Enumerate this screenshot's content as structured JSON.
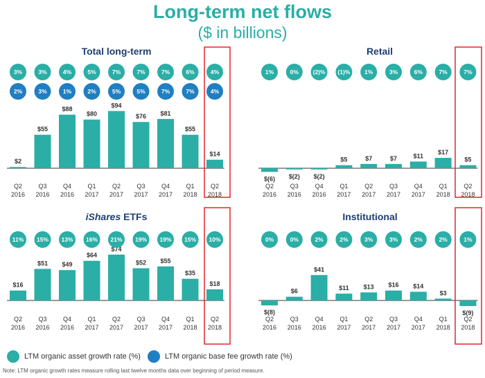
{
  "title": "Long-term net flows",
  "subtitle": "($ in billions)",
  "colors": {
    "teal": "#2aaea6",
    "blue": "#1f7fc1",
    "highlight": "#e0262b",
    "axis": "#333333"
  },
  "legend": {
    "asset_label": "LTM organic asset growth rate (%)",
    "base_fee_label": "LTM organic base fee growth rate (%)"
  },
  "footnote": "Note: LTM organic growth rates measure rolling last twelve months data over beginning of period measure.",
  "chart_data": [
    {
      "type": "bar",
      "title": "Total long-term",
      "categories": [
        "Q2 2016",
        "Q3 2016",
        "Q4 2016",
        "Q1 2017",
        "Q2 2017",
        "Q3 2017",
        "Q4 2017",
        "Q1 2018",
        "Q2 2018"
      ],
      "values": [
        2,
        55,
        88,
        80,
        94,
        76,
        81,
        55,
        14
      ],
      "value_labels": [
        "$2",
        "$55",
        "$88",
        "$80",
        "$94",
        "$76",
        "$81",
        "$55",
        "$14"
      ],
      "asset_growth": [
        "3%",
        "3%",
        "4%",
        "5%",
        "7%",
        "7%",
        "7%",
        "6%",
        "4%"
      ],
      "base_fee_growth": [
        "2%",
        "3%",
        "1%",
        "2%",
        "5%",
        "5%",
        "7%",
        "7%",
        "4%"
      ],
      "highlight_category": "Q2 2018"
    },
    {
      "type": "bar",
      "title": "Retail",
      "categories": [
        "Q2 2016",
        "Q3 2016",
        "Q4 2016",
        "Q1 2017",
        "Q2 2017",
        "Q3 2017",
        "Q4 2017",
        "Q1 2018",
        "Q2 2018"
      ],
      "values": [
        -6,
        -2,
        -2,
        5,
        7,
        7,
        11,
        17,
        5
      ],
      "value_labels": [
        "$(6)",
        "$(2)",
        "$(2)",
        "$5",
        "$7",
        "$7",
        "$11",
        "$17",
        "$5"
      ],
      "asset_growth": [
        "1%",
        "0%",
        "(2)%",
        "(1)%",
        "1%",
        "3%",
        "6%",
        "7%",
        "7%"
      ],
      "highlight_category": "Q2 2018"
    },
    {
      "type": "bar",
      "title": "iShares ETFs",
      "title_italic": "iShares",
      "title_rest": " ETFs",
      "categories": [
        "Q2 2016",
        "Q3 2016",
        "Q4 2016",
        "Q1 2017",
        "Q2 2017",
        "Q3 2017",
        "Q4 2017",
        "Q1 2018",
        "Q2 2018"
      ],
      "values": [
        16,
        51,
        49,
        64,
        74,
        52,
        55,
        35,
        18
      ],
      "value_labels": [
        "$16",
        "$51",
        "$49",
        "$64",
        "$74",
        "$52",
        "$55",
        "$35",
        "$18"
      ],
      "asset_growth": [
        "11%",
        "15%",
        "13%",
        "16%",
        "21%",
        "19%",
        "19%",
        "15%",
        "10%"
      ],
      "highlight_category": "Q2 2018"
    },
    {
      "type": "bar",
      "title": "Institutional",
      "categories": [
        "Q2 2016",
        "Q3 2016",
        "Q4 2016",
        "Q1 2017",
        "Q2 2017",
        "Q3 2017",
        "Q4 2017",
        "Q1 2018",
        "Q2 2018"
      ],
      "values": [
        -8,
        6,
        41,
        11,
        13,
        16,
        14,
        3,
        -9
      ],
      "value_labels": [
        "$(8)",
        "$6",
        "$41",
        "$11",
        "$13",
        "$16",
        "$14",
        "$3",
        "$(9)"
      ],
      "asset_growth": [
        "0%",
        "0%",
        "2%",
        "2%",
        "3%",
        "3%",
        "2%",
        "2%",
        "1%"
      ],
      "highlight_category": "Q2 2018"
    }
  ]
}
